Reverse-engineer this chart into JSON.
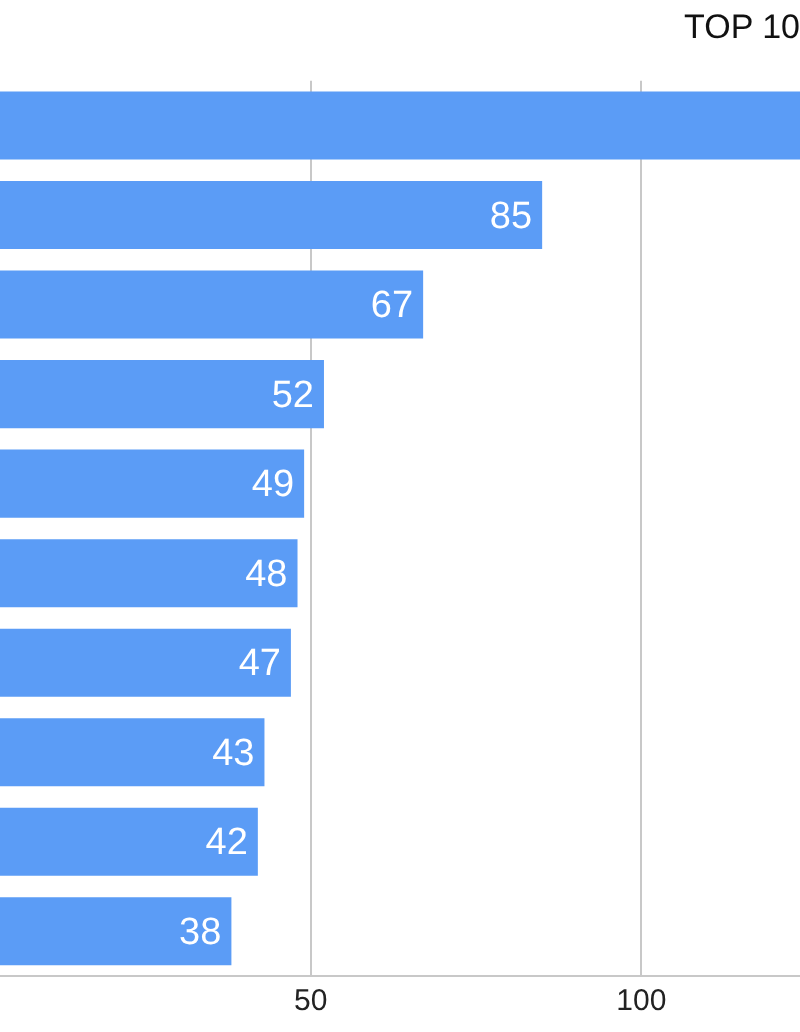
{
  "chart_data": {
    "type": "bar",
    "orientation": "horizontal",
    "title": "TOP 10",
    "categories": [
      null,
      null,
      null,
      null,
      null,
      null,
      null,
      null,
      null,
      null
    ],
    "values": [
      124,
      85,
      67,
      52,
      49,
      48,
      47,
      43,
      42,
      38
    ],
    "value_labels": [
      null,
      "85",
      "67",
      "52",
      "49",
      "48",
      "47",
      "43",
      "42",
      "38"
    ],
    "color": "#5b9cf6",
    "xlim": [
      3,
      124
    ],
    "xticks": [
      50,
      100
    ],
    "grid": "x"
  }
}
